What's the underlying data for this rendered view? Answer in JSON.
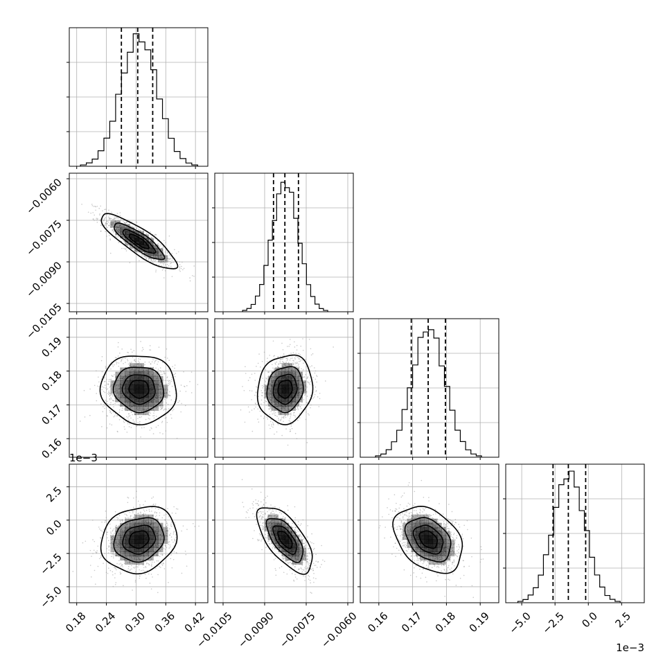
{
  "chart_data": {
    "type": "corner",
    "parameters": [
      {
        "xlim": [
          0.165,
          0.445
        ],
        "ticks": [
          0.18,
          0.24,
          0.3,
          0.36,
          0.42
        ],
        "tick_labels": [
          "0.18",
          "0.24",
          "0.30",
          "0.36",
          "0.42"
        ],
        "quantiles": [
          0.2703,
          0.3033,
          0.3336
        ],
        "mean": 0.306,
        "std": 0.037
      },
      {
        "xlim": [
          -0.0108,
          -0.0058
        ],
        "ticks": [
          -0.0105,
          -0.009,
          -0.0075,
          -0.006
        ],
        "tick_labels": [
          "−0.0105",
          "−0.0090",
          "−0.0075",
          "−0.0060"
        ],
        "quantiles": [
          -0.00868,
          -0.00827,
          -0.00778
        ],
        "mean": -0.00826,
        "std": 0.00048
      },
      {
        "xlim": [
          0.1545,
          0.1955
        ],
        "ticks": [
          0.16,
          0.17,
          0.18,
          0.19
        ],
        "tick_labels": [
          "0.16",
          "0.17",
          "0.18",
          "0.19"
        ],
        "quantiles": [
          0.1696,
          0.1746,
          0.1797
        ],
        "mean": 0.1747,
        "std": 0.0049
      },
      {
        "xlim": [
          -6.2,
          4.2
        ],
        "ticks": [
          -5.0,
          -2.5,
          0.0,
          2.5
        ],
        "tick_labels": [
          "−5.0",
          "−2.5",
          "0.0",
          "2.5"
        ],
        "quantiles": [
          -2.65,
          -1.5,
          -0.2
        ],
        "mean": -1.45,
        "std": 1.2,
        "offset_label": "1e−3"
      }
    ],
    "correlations": [
      {
        "i": 1,
        "j": 0,
        "rho": -0.85
      },
      {
        "i": 2,
        "j": 0,
        "rho": -0.05
      },
      {
        "i": 2,
        "j": 1,
        "rho": 0.1
      },
      {
        "i": 3,
        "j": 0,
        "rho": 0.15
      },
      {
        "i": 3,
        "j": 1,
        "rho": -0.65
      },
      {
        "i": 3,
        "j": 2,
        "rho": -0.35
      }
    ],
    "contour_levels_sigma": [
      0.5,
      1.0,
      1.5,
      2.0
    ],
    "histogram_bins": 20,
    "grid": true,
    "legend": "none"
  },
  "colors": {
    "axes": "#000000",
    "grid": "#b0b0b0",
    "histogram": "#000000",
    "points": "#9a9a9a",
    "density_dark": "#000000",
    "background": "#ffffff"
  }
}
